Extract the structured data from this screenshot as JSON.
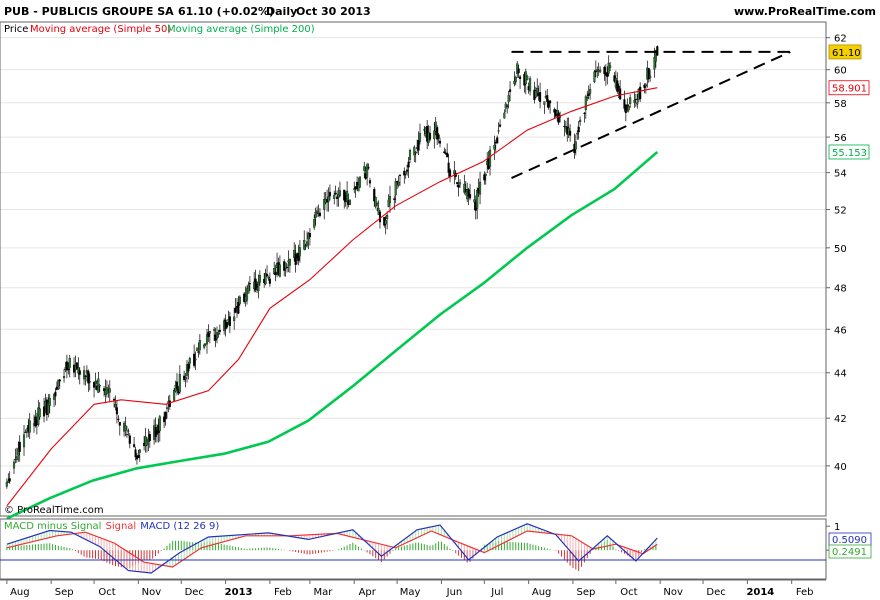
{
  "header": {
    "symbol": "PUB - PUBLICIS GROUPE SA",
    "quote": "61.10 (+0.02%)",
    "period": "Daily",
    "date": "Oct 30 2013",
    "site": "www.ProRealTime.com"
  },
  "legend": {
    "price": "Price",
    "ma50": "Moving average (Simple 50)",
    "ma200": "Moving average (Simple 200)"
  },
  "watermark": "© ProRealTime.com",
  "macd_legend": {
    "hist": "MACD minus Signal",
    "signal": "Signal",
    "macd": "MACD (12 26 9)"
  },
  "colors": {
    "up_candle": "#2e7d32",
    "down_candle": "#000000",
    "ma50": "#e8000b",
    "ma200": "#00c850",
    "macd_line": "#2233bb",
    "signal_line": "#ee3333",
    "hist_pos": "#33aa33",
    "hist_neg": "#cc3333",
    "last_price_bg": "#f5d000",
    "trendline": "#000000"
  },
  "chart_data": [
    {
      "type": "candlestick",
      "title": "PUB - PUBLICIS GROUPE SA",
      "ylim": [
        38,
        63
      ],
      "y_scale": "log",
      "y_ticks": [
        40,
        42,
        44,
        46,
        48,
        50,
        52,
        54,
        56,
        58,
        60,
        62
      ],
      "x_tick_labels": [
        "Aug",
        "Sep",
        "Oct",
        "Nov",
        "Dec",
        "2013",
        "Feb",
        "Mar",
        "Apr",
        "May",
        "Jun",
        "Jul",
        "Aug",
        "Sep",
        "Oct",
        "Nov",
        "Dec",
        "2014",
        "Feb"
      ],
      "price_points": [
        [
          "2012-08-01",
          39.4
        ],
        [
          "2012-08-15",
          41.6
        ],
        [
          "2012-08-31",
          42.6
        ],
        [
          "2012-09-14",
          44.6
        ],
        [
          "2012-09-28",
          43.6
        ],
        [
          "2012-10-12",
          43.1
        ],
        [
          "2012-10-22",
          41.6
        ],
        [
          "2012-10-31",
          40.4
        ],
        [
          "2012-11-15",
          41.6
        ],
        [
          "2012-11-30",
          43.6
        ],
        [
          "2012-12-14",
          45.1
        ],
        [
          "2012-12-31",
          46.1
        ],
        [
          "2013-01-15",
          47.6
        ],
        [
          "2013-01-31",
          48.6
        ],
        [
          "2013-02-15",
          49.1
        ],
        [
          "2013-02-28",
          50.6
        ],
        [
          "2013-03-15",
          53.1
        ],
        [
          "2013-03-28",
          52.6
        ],
        [
          "2013-04-10",
          54.1
        ],
        [
          "2013-04-20",
          51.1
        ],
        [
          "2013-04-30",
          53.1
        ],
        [
          "2013-05-15",
          55.6
        ],
        [
          "2013-05-28",
          56.6
        ],
        [
          "2013-06-07",
          54.1
        ],
        [
          "2013-06-24",
          52.1
        ],
        [
          "2013-07-10",
          56.1
        ],
        [
          "2013-07-24",
          60.1
        ],
        [
          "2013-08-05",
          58.6
        ],
        [
          "2013-08-20",
          57.6
        ],
        [
          "2013-09-02",
          55.6
        ],
        [
          "2013-09-16",
          59.6
        ],
        [
          "2013-09-26",
          60.1
        ],
        [
          "2013-10-08",
          57.6
        ],
        [
          "2013-10-16",
          58.1
        ],
        [
          "2013-10-30",
          61.1
        ]
      ],
      "series": [
        {
          "name": "Moving average (Simple 50)",
          "last_value": 58.901,
          "points": [
            [
              "2012-08-01",
              38.4
            ],
            [
              "2012-09-01",
              40.7
            ],
            [
              "2012-10-01",
              42.6
            ],
            [
              "2012-10-20",
              42.8
            ],
            [
              "2012-11-20",
              42.6
            ],
            [
              "2012-12-20",
              43.2
            ],
            [
              "2013-01-10",
              44.6
            ],
            [
              "2013-02-01",
              47.0
            ],
            [
              "2013-03-01",
              48.4
            ],
            [
              "2013-03-31",
              50.4
            ],
            [
              "2013-04-30",
              52.2
            ],
            [
              "2013-05-31",
              53.5
            ],
            [
              "2013-06-30",
              54.6
            ],
            [
              "2013-07-31",
              56.4
            ],
            [
              "2013-08-31",
              57.5
            ],
            [
              "2013-09-30",
              58.4
            ],
            [
              "2013-10-30",
              58.901
            ]
          ]
        },
        {
          "name": "Moving average (Simple 200)",
          "last_value": 55.153,
          "points": [
            [
              "2012-08-01",
              37.9
            ],
            [
              "2012-08-31",
              38.7
            ],
            [
              "2012-09-30",
              39.4
            ],
            [
              "2012-10-31",
              39.9
            ],
            [
              "2012-11-30",
              40.2
            ],
            [
              "2012-12-31",
              40.5
            ],
            [
              "2013-01-31",
              41.0
            ],
            [
              "2013-02-28",
              41.9
            ],
            [
              "2013-03-31",
              43.4
            ],
            [
              "2013-04-30",
              45.0
            ],
            [
              "2013-05-31",
              46.7
            ],
            [
              "2013-06-30",
              48.2
            ],
            [
              "2013-07-31",
              50.0
            ],
            [
              "2013-08-31",
              51.7
            ],
            [
              "2013-09-30",
              53.1
            ],
            [
              "2013-10-30",
              55.153
            ]
          ]
        }
      ],
      "annotations": [
        {
          "type": "trendline",
          "style": "dashed",
          "from": [
            "2013-07-20",
            61.1
          ],
          "to": [
            "2014-01-31",
            61.1
          ]
        },
        {
          "type": "trendline",
          "style": "dashed",
          "from": [
            "2013-07-20",
            53.7
          ],
          "to": [
            "2014-01-31",
            61.1
          ]
        }
      ],
      "labels": {
        "last_price": "61.10",
        "ma50_value": "58.901",
        "ma200_value": "55.153"
      }
    },
    {
      "type": "line",
      "title": "MACD (12 26 9)",
      "ylim": [
        -1.2,
        1.3
      ],
      "y_ticks": [
        1,
        0
      ],
      "labels": {
        "macd_value": "0.5090",
        "signal_value": "0.2491"
      },
      "series": [
        {
          "name": "MACD",
          "points": [
            [
              "2012-08-01",
              0.25
            ],
            [
              "2012-08-31",
              0.82
            ],
            [
              "2012-09-15",
              0.75
            ],
            [
              "2012-10-05",
              0.15
            ],
            [
              "2012-10-25",
              -0.85
            ],
            [
              "2012-11-10",
              -0.95
            ],
            [
              "2012-11-30",
              -0.1
            ],
            [
              "2012-12-20",
              0.55
            ],
            [
              "2013-01-31",
              0.72
            ],
            [
              "2013-02-28",
              0.45
            ],
            [
              "2013-03-31",
              0.85
            ],
            [
              "2013-04-20",
              -0.25
            ],
            [
              "2013-05-15",
              0.85
            ],
            [
              "2013-05-31",
              1.05
            ],
            [
              "2013-06-20",
              -0.4
            ],
            [
              "2013-07-10",
              0.55
            ],
            [
              "2013-07-31",
              1.1
            ],
            [
              "2013-08-20",
              0.65
            ],
            [
              "2013-09-05",
              -0.45
            ],
            [
              "2013-09-25",
              0.6
            ],
            [
              "2013-10-15",
              -0.45
            ],
            [
              "2013-10-30",
              0.509
            ]
          ]
        },
        {
          "name": "Signal",
          "points": [
            [
              "2012-08-01",
              0.1
            ],
            [
              "2012-09-05",
              0.6
            ],
            [
              "2012-09-25",
              0.75
            ],
            [
              "2012-10-15",
              0.3
            ],
            [
              "2012-11-05",
              -0.5
            ],
            [
              "2012-11-25",
              -0.7
            ],
            [
              "2012-12-15",
              0.1
            ],
            [
              "2013-01-15",
              0.6
            ],
            [
              "2013-02-15",
              0.6
            ],
            [
              "2013-03-20",
              0.7
            ],
            [
              "2013-04-30",
              0.1
            ],
            [
              "2013-05-25",
              0.8
            ],
            [
              "2013-06-10",
              0.4
            ],
            [
              "2013-07-01",
              -0.1
            ],
            [
              "2013-07-31",
              0.8
            ],
            [
              "2013-08-31",
              0.6
            ],
            [
              "2013-09-15",
              0.05
            ],
            [
              "2013-10-01",
              0.25
            ],
            [
              "2013-10-20",
              -0.15
            ],
            [
              "2013-10-30",
              0.2491
            ]
          ]
        }
      ]
    }
  ]
}
